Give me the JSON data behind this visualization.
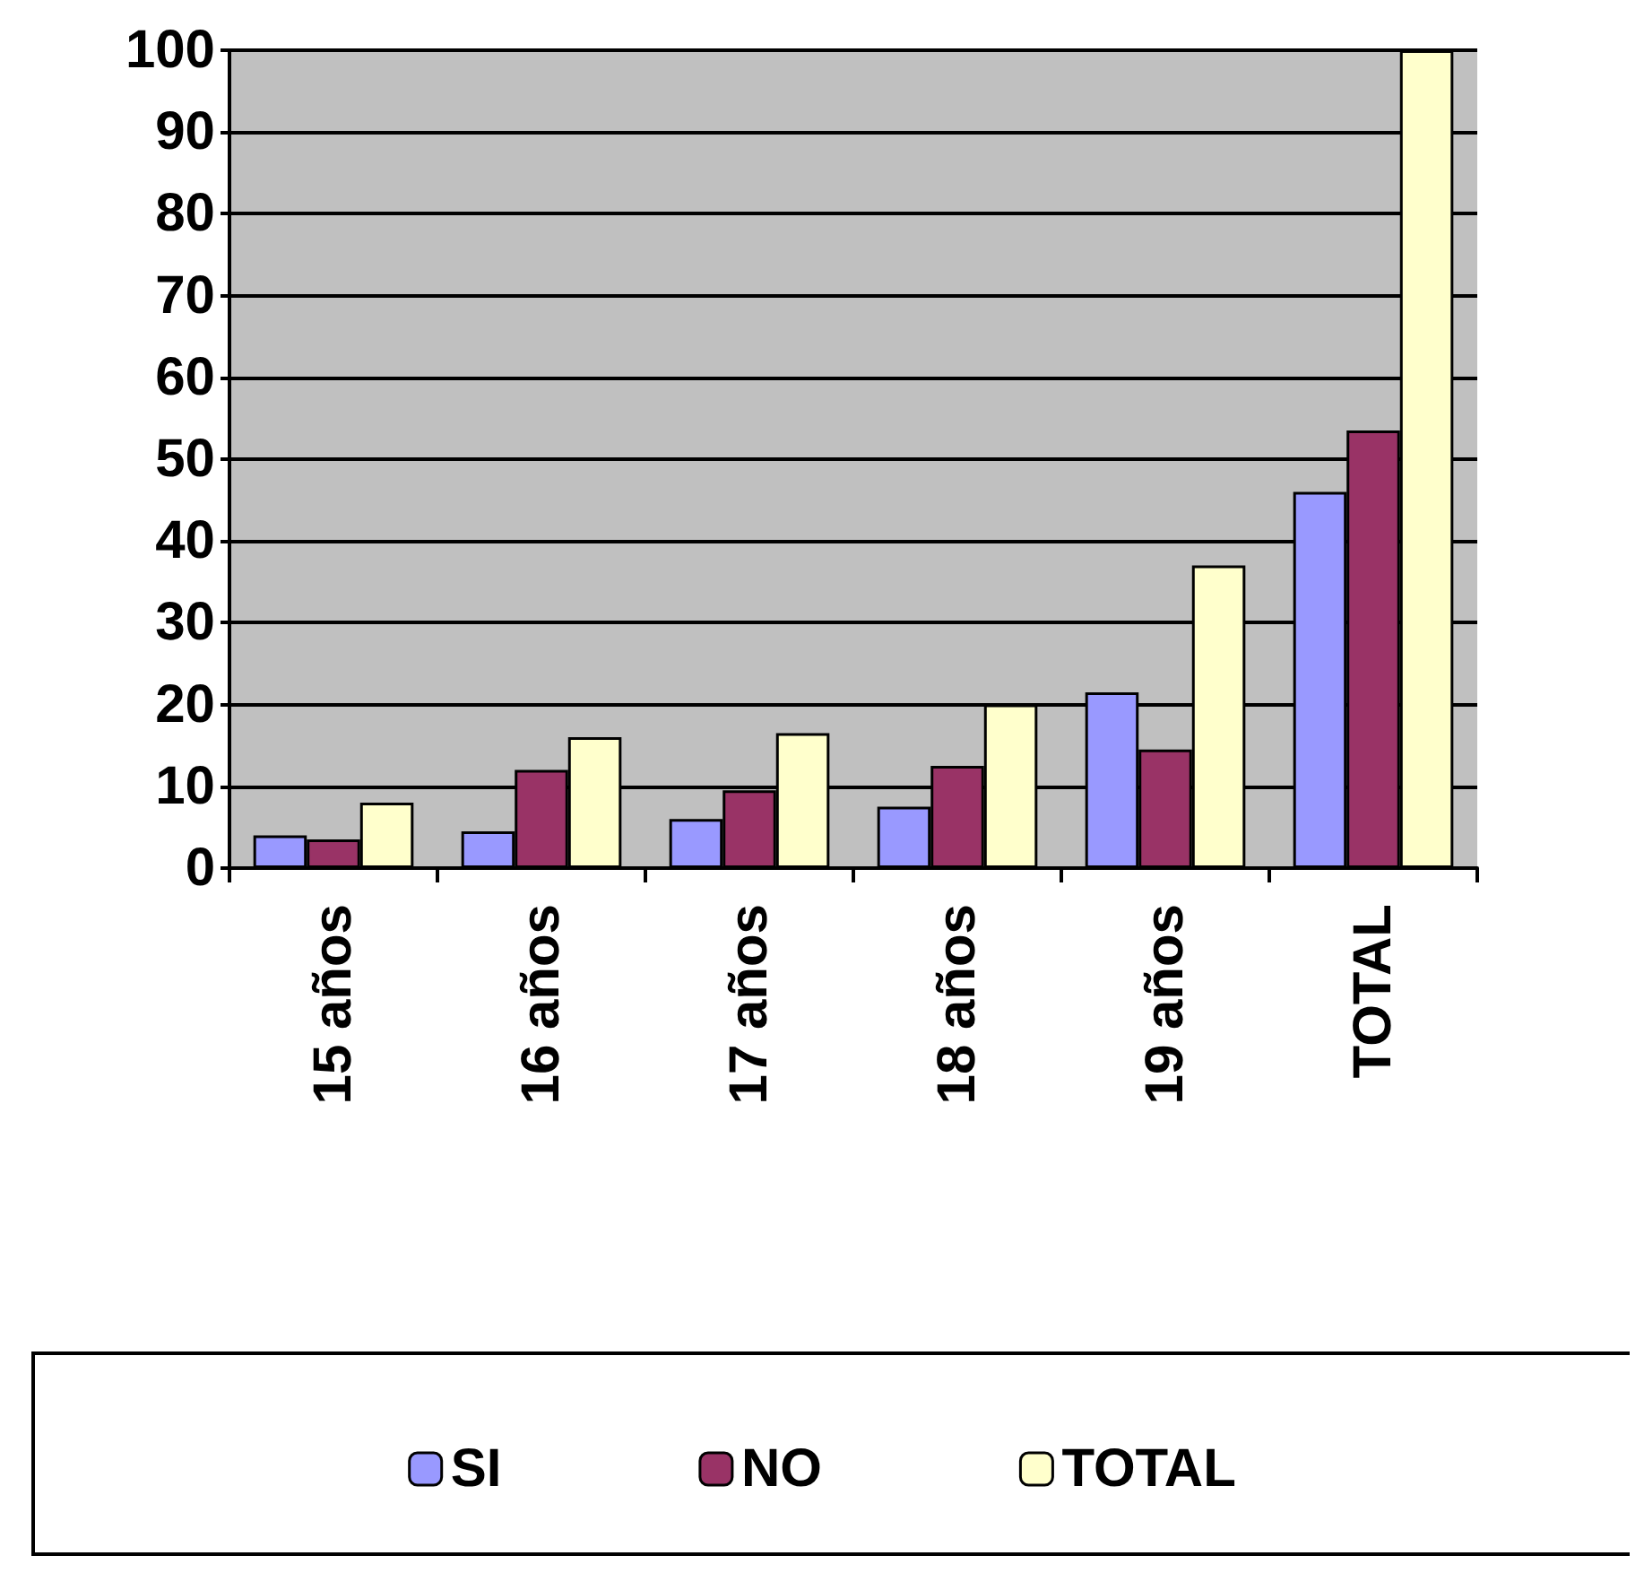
{
  "chart_data": {
    "type": "bar",
    "categories": [
      "15 años",
      "16 años",
      "17 años",
      "18 años",
      "19 años",
      "TOTAL"
    ],
    "series": [
      {
        "name": "SI",
        "color": "#9999ff",
        "values": [
          4,
          4.5,
          6,
          7.5,
          21.5,
          46
        ]
      },
      {
        "name": "NO",
        "color": "#993366",
        "values": [
          3.5,
          12,
          9.5,
          12.5,
          14.5,
          53.5
        ]
      },
      {
        "name": "TOTAL",
        "color": "#ffffcc",
        "values": [
          8,
          16,
          16.5,
          20,
          37,
          100
        ]
      }
    ],
    "ylim": [
      0,
      100
    ],
    "yticks": [
      0,
      10,
      20,
      30,
      40,
      50,
      60,
      70,
      80,
      90,
      100
    ],
    "grid": "y",
    "legend": "bottom"
  }
}
